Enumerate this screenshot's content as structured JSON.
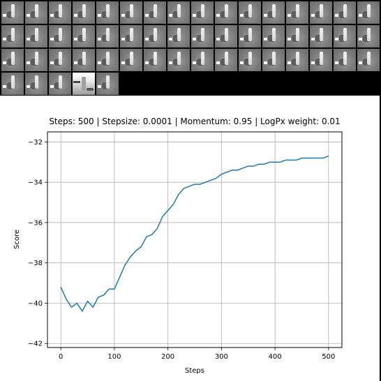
{
  "thumbnails": {
    "count": 53,
    "highlight_index": 51
  },
  "chart_data": {
    "type": "line",
    "title": "Steps: 500 | Stepsize: 0.0001 | Momentum: 0.95 | LogPx weight: 0.01",
    "xlabel": "Steps",
    "ylabel": "Score",
    "xlim": [
      -25,
      525
    ],
    "ylim": [
      -42.2,
      -31.5
    ],
    "xticks": [
      0,
      100,
      200,
      300,
      400,
      500
    ],
    "xtick_labels": [
      "0",
      "100",
      "200",
      "300",
      "400",
      "500"
    ],
    "yticks": [
      -42,
      -40,
      -38,
      -36,
      -34,
      -32
    ],
    "ytick_labels": [
      "−42",
      "−40",
      "−38",
      "−36",
      "−34",
      "−32"
    ],
    "grid": true,
    "line_color": "#1f77b4",
    "series": [
      {
        "x": [
          0,
          10,
          20,
          30,
          40,
          50,
          60,
          70,
          80,
          90,
          100,
          110,
          120,
          130,
          140,
          150,
          160,
          170,
          180,
          190,
          200,
          210,
          220,
          230,
          240,
          250,
          260,
          270,
          280,
          290,
          300,
          310,
          320,
          330,
          340,
          350,
          360,
          370,
          380,
          390,
          400,
          410,
          420,
          430,
          440,
          450,
          460,
          470,
          480,
          490,
          500
        ],
        "values": [
          -39.2,
          -39.8,
          -40.2,
          -40.0,
          -40.4,
          -39.9,
          -40.2,
          -39.7,
          -39.6,
          -39.3,
          -39.3,
          -38.7,
          -38.1,
          -37.7,
          -37.4,
          -37.2,
          -36.7,
          -36.6,
          -36.3,
          -35.7,
          -35.4,
          -35.1,
          -34.6,
          -34.3,
          -34.2,
          -34.1,
          -34.1,
          -34.0,
          -33.9,
          -33.8,
          -33.6,
          -33.5,
          -33.4,
          -33.4,
          -33.3,
          -33.2,
          -33.2,
          -33.1,
          -33.1,
          -33.0,
          -33.0,
          -33.0,
          -32.9,
          -32.9,
          -32.9,
          -32.8,
          -32.8,
          -32.8,
          -32.8,
          -32.8,
          -32.7
        ]
      }
    ]
  }
}
